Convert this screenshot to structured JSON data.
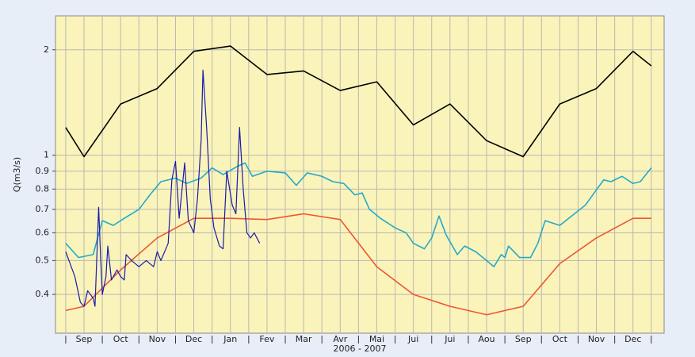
{
  "chart_data": {
    "type": "line",
    "y_label": "Q(m3/s)",
    "x_label": "2006 - 2007",
    "categories": [
      "Sep",
      "Oct",
      "Nov",
      "Dec",
      "Jan",
      "Fev",
      "Mar",
      "Avr",
      "Mai",
      "Jui",
      "Jui",
      "Aou",
      "Sep",
      "Oct",
      "Nov",
      "Dec"
    ],
    "xlim": [
      -0.28,
      16.35
    ],
    "ylim": [
      0.31,
      2.5
    ],
    "log_y": true,
    "yticks": [
      0.4,
      0.5,
      0.6,
      0.7,
      0.8,
      0.9,
      1,
      2
    ],
    "grid": true,
    "series": [
      {
        "color": "#000000",
        "x": [
          0,
          0.5,
          1.5,
          2.5,
          3.5,
          4.5,
          5.5,
          6.5,
          7.5,
          8.5,
          9.5,
          10.5,
          11.5,
          12.5,
          13.5,
          14.5,
          15.5,
          16
        ],
        "values": [
          1.2,
          0.99,
          1.4,
          1.55,
          1.98,
          2.05,
          1.7,
          1.74,
          1.53,
          1.62,
          1.22,
          1.4,
          1.1,
          0.99,
          1.4,
          1.55,
          1.98,
          1.8
        ]
      },
      {
        "color": "#22aacc",
        "x": [
          0,
          0.35,
          0.75,
          1.0,
          1.3,
          1.6,
          2.0,
          2.3,
          2.6,
          3.0,
          3.3,
          3.7,
          4.0,
          4.3,
          4.7,
          4.9,
          5.1,
          5.5,
          6.0,
          6.3,
          6.6,
          7.0,
          7.3,
          7.6,
          7.9,
          8.1,
          8.3,
          8.6,
          9.0,
          9.3,
          9.5,
          9.8,
          10.0,
          10.2,
          10.4,
          10.7,
          10.9,
          11.2,
          11.5,
          11.7,
          11.9,
          12.0,
          12.1,
          12.4,
          12.7,
          12.9,
          13.1,
          13.5,
          13.9,
          14.2,
          14.4,
          14.7,
          14.9,
          15.2,
          15.5,
          15.7,
          16.0
        ],
        "values": [
          0.56,
          0.51,
          0.52,
          0.65,
          0.63,
          0.66,
          0.7,
          0.77,
          0.84,
          0.86,
          0.83,
          0.86,
          0.92,
          0.88,
          0.93,
          0.95,
          0.87,
          0.9,
          0.89,
          0.82,
          0.89,
          0.87,
          0.84,
          0.83,
          0.77,
          0.78,
          0.7,
          0.66,
          0.62,
          0.6,
          0.56,
          0.54,
          0.58,
          0.67,
          0.59,
          0.52,
          0.55,
          0.53,
          0.5,
          0.48,
          0.52,
          0.51,
          0.55,
          0.51,
          0.51,
          0.56,
          0.65,
          0.63,
          0.68,
          0.72,
          0.77,
          0.85,
          0.84,
          0.87,
          0.83,
          0.84,
          0.92
        ]
      },
      {
        "color": "#ee5533",
        "x": [
          0,
          0.5,
          1.5,
          2.5,
          3.5,
          4.5,
          5.5,
          6.5,
          7.5,
          8.5,
          9.5,
          10.5,
          11.5,
          12.5,
          13.5,
          14.5,
          15.5,
          16
        ],
        "values": [
          0.36,
          0.37,
          0.47,
          0.58,
          0.66,
          0.66,
          0.655,
          0.68,
          0.655,
          0.48,
          0.4,
          0.37,
          0.35,
          0.37,
          0.49,
          0.58,
          0.66,
          0.66
        ]
      },
      {
        "color": "#1a1aaa",
        "x": [
          0,
          0.15,
          0.25,
          0.4,
          0.5,
          0.6,
          0.75,
          0.8,
          0.9,
          0.95,
          1.0,
          1.1,
          1.15,
          1.25,
          1.4,
          1.5,
          1.6,
          1.65,
          1.8,
          2.0,
          2.2,
          2.4,
          2.5,
          2.6,
          2.8,
          2.9,
          3.0,
          3.1,
          3.25,
          3.35,
          3.5,
          3.6,
          3.7,
          3.75,
          3.85,
          3.95,
          4.05,
          4.2,
          4.3,
          4.4,
          4.55,
          4.65,
          4.75,
          4.85,
          4.95,
          5.05,
          5.15,
          5.3
        ],
        "values": [
          0.53,
          0.48,
          0.45,
          0.38,
          0.37,
          0.41,
          0.39,
          0.37,
          0.71,
          0.52,
          0.4,
          0.45,
          0.55,
          0.44,
          0.47,
          0.45,
          0.44,
          0.52,
          0.5,
          0.48,
          0.5,
          0.48,
          0.53,
          0.5,
          0.56,
          0.85,
          0.96,
          0.66,
          0.95,
          0.65,
          0.6,
          0.75,
          1.1,
          1.75,
          1.2,
          0.75,
          0.62,
          0.55,
          0.54,
          0.9,
          0.72,
          0.68,
          1.2,
          0.8,
          0.6,
          0.58,
          0.6,
          0.56
        ]
      }
    ]
  }
}
